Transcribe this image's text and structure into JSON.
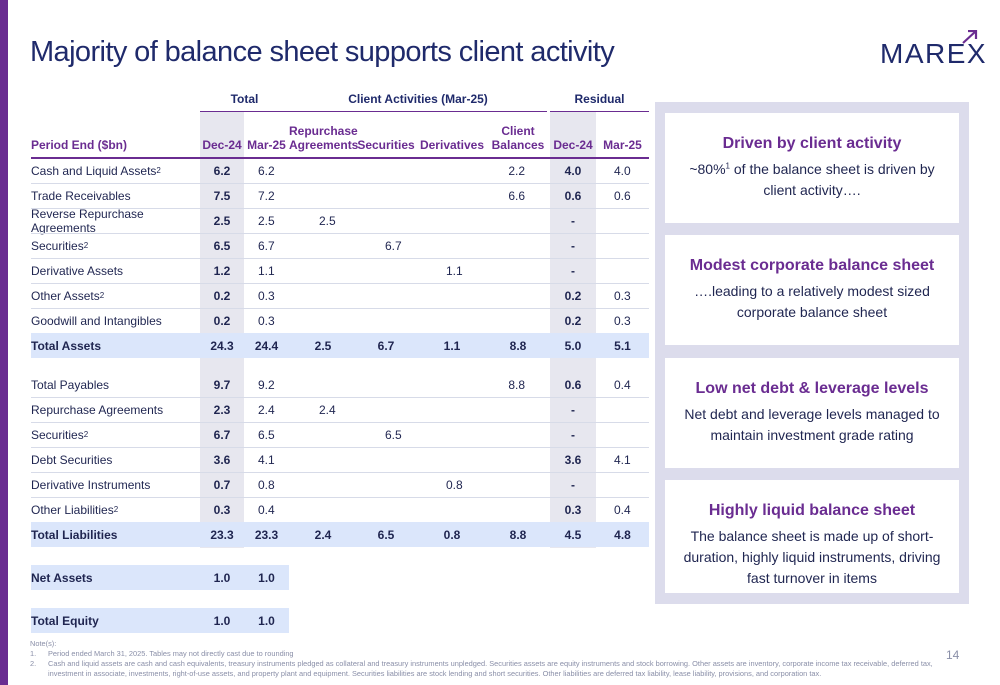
{
  "title": "Majority of balance sheet supports client activity",
  "logo": {
    "text": "MAREX"
  },
  "groups": {
    "total": "Total",
    "client": "Client Activities (Mar-25)",
    "residual": "Residual"
  },
  "headers": {
    "label": "Period End ($bn)",
    "total_dec": "Dec-24",
    "total_mar": "Mar-25",
    "repo_line1": "Repurchase",
    "repo_line2": "Agreements",
    "securities": "Securities",
    "derivatives": "Derivatives",
    "client_line1": "Client",
    "client_line2": "Balances",
    "res_dec": "Dec-24",
    "res_mar": "Mar-25"
  },
  "assets": [
    {
      "label": "Cash and Liquid Assets",
      "sup": "2",
      "tdec": "6.2",
      "tmar": "6.2",
      "repo": "",
      "sec": "",
      "der": "",
      "cb": "2.2",
      "rdec": "4.0",
      "rmar": "4.0"
    },
    {
      "label": "Trade Receivables",
      "sup": "",
      "tdec": "7.5",
      "tmar": "7.2",
      "repo": "",
      "sec": "",
      "der": "",
      "cb": "6.6",
      "rdec": "0.6",
      "rmar": "0.6"
    },
    {
      "label": "Reverse Repurchase Agreements",
      "sup": "",
      "tdec": "2.5",
      "tmar": "2.5",
      "repo": "2.5",
      "sec": "",
      "der": "",
      "cb": "",
      "rdec": "-",
      "rmar": ""
    },
    {
      "label": "Securities",
      "sup": "2",
      "tdec": "6.5",
      "tmar": "6.7",
      "repo": "",
      "sec": "6.7",
      "der": "",
      "cb": "",
      "rdec": "-",
      "rmar": ""
    },
    {
      "label": "Derivative Assets",
      "sup": "",
      "tdec": "1.2",
      "tmar": "1.1",
      "repo": "",
      "sec": "",
      "der": "1.1",
      "cb": "",
      "rdec": "-",
      "rmar": ""
    },
    {
      "label": "Other Assets",
      "sup": "2",
      "tdec": "0.2",
      "tmar": "0.3",
      "repo": "",
      "sec": "",
      "der": "",
      "cb": "",
      "rdec": "0.2",
      "rmar": "0.3"
    },
    {
      "label": "Goodwill and Intangibles",
      "sup": "",
      "tdec": "0.2",
      "tmar": "0.3",
      "repo": "",
      "sec": "",
      "der": "",
      "cb": "",
      "rdec": "0.2",
      "rmar": "0.3"
    }
  ],
  "total_assets": {
    "label": "Total Assets",
    "tdec": "24.3",
    "tmar": "24.4",
    "repo": "2.5",
    "sec": "6.7",
    "der": "1.1",
    "cb": "8.8",
    "rdec": "5.0",
    "rmar": "5.1"
  },
  "liabilities": [
    {
      "label": "Total Payables",
      "sup": "",
      "tdec": "9.7",
      "tmar": "9.2",
      "repo": "",
      "sec": "",
      "der": "",
      "cb": "8.8",
      "rdec": "0.6",
      "rmar": "0.4"
    },
    {
      "label": "Repurchase Agreements",
      "sup": "",
      "tdec": "2.3",
      "tmar": "2.4",
      "repo": "2.4",
      "sec": "",
      "der": "",
      "cb": "",
      "rdec": "-",
      "rmar": ""
    },
    {
      "label": "Securities",
      "sup": "2",
      "tdec": "6.7",
      "tmar": "6.5",
      "repo": "",
      "sec": "6.5",
      "der": "",
      "cb": "",
      "rdec": "-",
      "rmar": ""
    },
    {
      "label": "Debt Securities",
      "sup": "",
      "tdec": "3.6",
      "tmar": "4.1",
      "repo": "",
      "sec": "",
      "der": "",
      "cb": "",
      "rdec": "3.6",
      "rmar": "4.1"
    },
    {
      "label": "Derivative Instruments",
      "sup": "",
      "tdec": "0.7",
      "tmar": "0.8",
      "repo": "",
      "sec": "",
      "der": "0.8",
      "cb": "",
      "rdec": "-",
      "rmar": ""
    },
    {
      "label": "Other Liabilities",
      "sup": "2",
      "tdec": "0.3",
      "tmar": "0.4",
      "repo": "",
      "sec": "",
      "der": "",
      "cb": "",
      "rdec": "0.3",
      "rmar": "0.4"
    }
  ],
  "total_liabilities": {
    "label": "Total Liabilities",
    "tdec": "23.3",
    "tmar": "23.3",
    "repo": "2.4",
    "sec": "6.5",
    "der": "0.8",
    "cb": "8.8",
    "rdec": "4.5",
    "rmar": "4.8"
  },
  "net_assets": {
    "label": "Net Assets",
    "tdec": "1.0",
    "tmar": "1.0"
  },
  "total_equity": {
    "label": "Total Equity",
    "tdec": "1.0",
    "tmar": "1.0"
  },
  "cards": [
    {
      "title": "Driven by client activity",
      "body_pre": "~80%",
      "body_sup": "1",
      "body_post": " of the balance sheet is driven by client activity…."
    },
    {
      "title": "Modest corporate balance sheet",
      "body": "….leading to a relatively modest sized corporate balance sheet"
    },
    {
      "title": "Low net debt & leverage levels",
      "body": "Net debt and leverage levels managed to maintain investment grade rating"
    },
    {
      "title": "Highly liquid balance sheet",
      "body": "The balance sheet is made up of short-duration, highly liquid instruments, driving fast turnover in items"
    }
  ],
  "notes": {
    "heading": "Note(s):",
    "items": [
      {
        "n": "1.",
        "text": "Period ended March 31, 2025. Tables may not directly cast due to rounding"
      },
      {
        "n": "2.",
        "text": "Cash and liquid assets are cash and cash equivalents, treasury instruments pledged as collateral and treasury instruments unpledged. Securities assets are equity instruments and stock borrowing. Other assets are inventory, corporate income tax receivable, deferred tax, investment in associate, investments, right-of-use assets, and property plant and equipment. Securities liabilities are stock lending and short securities. Other liabilities are deferred tax liability, lease liability, provisions, and corporation tax."
      }
    ]
  },
  "page_number": "14",
  "colors": {
    "brand_purple": "#6a2c91",
    "navy": "#1f2a6b",
    "total_row": "#dbe6fb",
    "panel": "#dcdcec"
  }
}
